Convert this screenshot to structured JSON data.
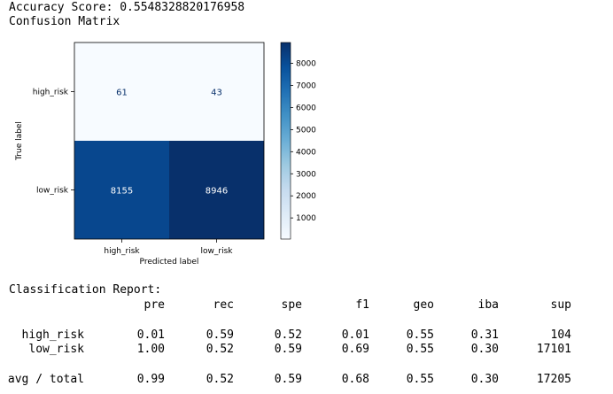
{
  "output": {
    "accuracy_line": "Accuracy Score: 0.5548328820176958",
    "cm_heading": "Confusion Matrix",
    "report_heading": "Classification Report:"
  },
  "chart_data": {
    "type": "heatmap",
    "title": "",
    "xlabel": "Predicted label",
    "ylabel": "True label",
    "x_categories": [
      "high_risk",
      "low_risk"
    ],
    "y_categories": [
      "high_risk",
      "low_risk"
    ],
    "values": [
      [
        61,
        43
      ],
      [
        8155,
        8946
      ]
    ],
    "colormap": "Blues",
    "colorbar": {
      "min": 43,
      "max": 8946,
      "ticks": [
        1000,
        2000,
        3000,
        4000,
        5000,
        6000,
        7000,
        8000
      ]
    },
    "colors": {
      "light": "#f7fbff",
      "dark": "#08306b",
      "text_light": "#ffffff",
      "text_dark": "#08306b"
    }
  },
  "report": {
    "columns": [
      "pre",
      "rec",
      "spe",
      "f1",
      "geo",
      "iba",
      "sup"
    ],
    "rows": [
      {
        "label": "high_risk",
        "values": [
          "0.01",
          "0.59",
          "0.52",
          "0.01",
          "0.55",
          "0.31",
          "104"
        ]
      },
      {
        "label": "low_risk",
        "values": [
          "1.00",
          "0.52",
          "0.59",
          "0.69",
          "0.55",
          "0.30",
          "17101"
        ]
      }
    ],
    "total": {
      "label": "avg / total",
      "values": [
        "0.99",
        "0.52",
        "0.59",
        "0.68",
        "0.55",
        "0.30",
        "17205"
      ]
    }
  }
}
